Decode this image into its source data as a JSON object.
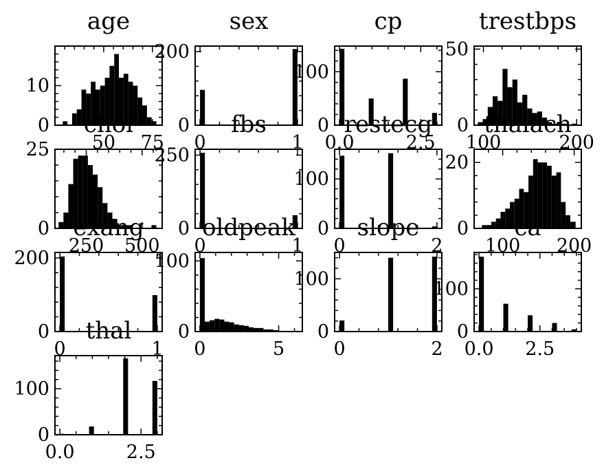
{
  "chart_data": [
    {
      "type": "bar",
      "title": "age",
      "xlim": [
        25,
        80
      ],
      "ylim": [
        0,
        20
      ],
      "x_ticks": [
        "50",
        "75"
      ],
      "x_tick_values": [
        50,
        75
      ],
      "y_ticks": [
        "0",
        "10"
      ],
      "y_tick_values": [
        0,
        10
      ],
      "bin_edges": [
        29,
        31.4,
        33.8,
        36.2,
        38.6,
        41,
        43.4,
        45.8,
        48.2,
        50.6,
        53,
        55.4,
        57.8,
        60.2,
        62.6,
        65,
        67.4,
        69.8,
        72.2,
        74.6,
        77
      ],
      "values": [
        1,
        0,
        3,
        4,
        9,
        8,
        11,
        9,
        10,
        12,
        15,
        18,
        12,
        13,
        11,
        10,
        7,
        5,
        2,
        1
      ]
    },
    {
      "type": "bar",
      "title": "sex",
      "xlim": [
        -0.05,
        1.05
      ],
      "ylim": [
        0,
        215
      ],
      "x_ticks": [
        "0",
        "1"
      ],
      "x_tick_values": [
        0,
        1
      ],
      "y_ticks": [
        "0",
        "200"
      ],
      "y_tick_values": [
        0,
        200
      ],
      "bin_edges": [
        0,
        0.05,
        0.1,
        0.15,
        0.2,
        0.25,
        0.3,
        0.35,
        0.4,
        0.45,
        0.5,
        0.55,
        0.6,
        0.65,
        0.7,
        0.75,
        0.8,
        0.85,
        0.9,
        0.95,
        1
      ],
      "values": [
        96,
        0,
        0,
        0,
        0,
        0,
        0,
        0,
        0,
        0,
        0,
        0,
        0,
        0,
        0,
        0,
        0,
        0,
        0,
        207
      ]
    },
    {
      "type": "bar",
      "title": "cp",
      "xlim": [
        -0.15,
        3.15
      ],
      "ylim": [
        0,
        148
      ],
      "x_ticks": [
        "0.0",
        "2.5"
      ],
      "x_tick_values": [
        0,
        2.5
      ],
      "y_ticks": [
        "0",
        "100"
      ],
      "y_tick_values": [
        0,
        100
      ],
      "bin_edges": [
        0,
        0.15,
        0.3,
        0.45,
        0.6,
        0.75,
        0.9,
        1.05,
        1.2,
        1.35,
        1.5,
        1.65,
        1.8,
        1.95,
        2.1,
        2.25,
        2.4,
        2.55,
        2.7,
        2.85,
        3
      ],
      "values": [
        143,
        0,
        0,
        0,
        0,
        0,
        50,
        0,
        0,
        0,
        0,
        0,
        0,
        87,
        0,
        0,
        0,
        0,
        0,
        23
      ]
    },
    {
      "type": "bar",
      "title": "trestbps",
      "xlim": [
        90,
        205
      ],
      "ylim": [
        0,
        52
      ],
      "x_ticks": [
        "100",
        "200"
      ],
      "x_tick_values": [
        100,
        200
      ],
      "y_ticks": [
        "0",
        "50"
      ],
      "y_tick_values": [
        0,
        50
      ],
      "bin_edges": [
        94,
        99.3,
        104.6,
        109.9,
        115.2,
        120.5,
        125.8,
        131.1,
        136.4,
        141.7,
        147,
        152.3,
        157.6,
        162.9,
        168.2,
        173.5,
        178.8,
        184.1,
        189.4,
        194.7,
        200
      ],
      "values": [
        2,
        4,
        12,
        19,
        16,
        37,
        25,
        30,
        15,
        20,
        11,
        8,
        9,
        5,
        2,
        1,
        2,
        1,
        0,
        1
      ]
    },
    {
      "type": "bar",
      "title": "chol",
      "xlim": [
        110,
        590
      ],
      "ylim": [
        0,
        25
      ],
      "x_ticks": [
        "250",
        "500"
      ],
      "x_tick_values": [
        250,
        500
      ],
      "y_ticks": [
        "0",
        "25"
      ],
      "y_tick_values": [
        0,
        25
      ],
      "bin_edges": [
        126,
        147.9,
        169.8,
        191.7,
        213.6,
        235.5,
        257.4,
        279.3,
        301.2,
        323.1,
        345,
        366.9,
        388.8,
        410.7,
        432.6,
        454.5,
        476.4,
        498.3,
        520.2,
        542.1,
        564
      ],
      "values": [
        2,
        5,
        14,
        22,
        23,
        23,
        20,
        17,
        13,
        8,
        5,
        3,
        1,
        1,
        1,
        0,
        0,
        0,
        0,
        1
      ]
    },
    {
      "type": "bar",
      "title": "fbs",
      "xlim": [
        -0.05,
        1.05
      ],
      "ylim": [
        0,
        270
      ],
      "x_ticks": [
        "0",
        "1"
      ],
      "x_tick_values": [
        0,
        1
      ],
      "y_ticks": [
        "0",
        "250"
      ],
      "y_tick_values": [
        0,
        250
      ],
      "bin_edges": [
        0,
        0.05,
        0.1,
        0.15,
        0.2,
        0.25,
        0.3,
        0.35,
        0.4,
        0.45,
        0.5,
        0.55,
        0.6,
        0.65,
        0.7,
        0.75,
        0.8,
        0.85,
        0.9,
        0.95,
        1
      ],
      "values": [
        258,
        0,
        0,
        0,
        0,
        0,
        0,
        0,
        0,
        0,
        0,
        0,
        0,
        0,
        0,
        0,
        0,
        0,
        0,
        45
      ]
    },
    {
      "type": "bar",
      "title": "restecg",
      "xlim": [
        -0.1,
        2.1
      ],
      "ylim": [
        0,
        160
      ],
      "x_ticks": [
        "0",
        "2"
      ],
      "x_tick_values": [
        0,
        2
      ],
      "y_ticks": [
        "0",
        "100"
      ],
      "y_tick_values": [
        0,
        100
      ],
      "bin_edges": [
        0,
        0.1,
        0.2,
        0.3,
        0.4,
        0.5,
        0.6,
        0.7,
        0.8,
        0.9,
        1,
        1.1,
        1.2,
        1.3,
        1.4,
        1.5,
        1.6,
        1.7,
        1.8,
        1.9,
        2
      ],
      "values": [
        147,
        0,
        0,
        0,
        0,
        0,
        0,
        0,
        0,
        0,
        152,
        0,
        0,
        0,
        0,
        0,
        0,
        0,
        0,
        4
      ]
    },
    {
      "type": "bar",
      "title": "thalach",
      "xlim": [
        60,
        210
      ],
      "ylim": [
        0,
        24
      ],
      "x_ticks": [
        "100",
        "200"
      ],
      "x_tick_values": [
        100,
        200
      ],
      "y_ticks": [
        "0",
        "20"
      ],
      "y_tick_values": [
        0,
        20
      ],
      "bin_edges": [
        71,
        77.5,
        84,
        90.5,
        97,
        103.5,
        110,
        116.5,
        123,
        129.5,
        136,
        142.5,
        149,
        155.5,
        162,
        168.5,
        175,
        181.5,
        188,
        194.5,
        202
      ],
      "values": [
        1,
        1,
        2,
        3,
        5,
        6,
        8,
        9,
        12,
        11,
        16,
        21,
        20,
        20,
        19,
        16,
        17,
        8,
        4,
        2
      ]
    },
    {
      "type": "bar",
      "title": "exang",
      "xlim": [
        -0.05,
        1.05
      ],
      "ylim": [
        0,
        215
      ],
      "x_ticks": [
        "0",
        "1"
      ],
      "x_tick_values": [
        0,
        1
      ],
      "y_ticks": [
        "0",
        "200"
      ],
      "y_tick_values": [
        0,
        200
      ],
      "bin_edges": [
        0,
        0.05,
        0.1,
        0.15,
        0.2,
        0.25,
        0.3,
        0.35,
        0.4,
        0.45,
        0.5,
        0.55,
        0.6,
        0.65,
        0.7,
        0.75,
        0.8,
        0.85,
        0.9,
        0.95,
        1
      ],
      "values": [
        204,
        0,
        0,
        0,
        0,
        0,
        0,
        0,
        0,
        0,
        0,
        0,
        0,
        0,
        0,
        0,
        0,
        0,
        0,
        99
      ]
    },
    {
      "type": "bar",
      "title": "oldpeak",
      "xlim": [
        -0.3,
        6.5
      ],
      "ylim": [
        0,
        112
      ],
      "x_ticks": [
        "0",
        "5"
      ],
      "x_tick_values": [
        0,
        5
      ],
      "y_ticks": [
        "0",
        "100"
      ],
      "y_tick_values": [
        0,
        100
      ],
      "bin_edges": [
        0,
        0.31,
        0.62,
        0.93,
        1.24,
        1.55,
        1.86,
        2.17,
        2.48,
        2.79,
        3.1,
        3.41,
        3.72,
        4.03,
        4.34,
        4.65,
        4.96,
        5.27,
        5.58,
        5.89,
        6.2
      ],
      "values": [
        104,
        14,
        16,
        18,
        17,
        14,
        13,
        10,
        9,
        8,
        6,
        5,
        5,
        3,
        3,
        2,
        1,
        1,
        0,
        1
      ]
    },
    {
      "type": "bar",
      "title": "slope",
      "xlim": [
        -0.1,
        2.1
      ],
      "ylim": [
        0,
        150
      ],
      "x_ticks": [
        "0",
        "2"
      ],
      "x_tick_values": [
        0,
        2
      ],
      "y_ticks": [
        "0",
        "100"
      ],
      "y_tick_values": [
        0,
        100
      ],
      "bin_edges": [
        0,
        0.1,
        0.2,
        0.3,
        0.4,
        0.5,
        0.6,
        0.7,
        0.8,
        0.9,
        1,
        1.1,
        1.2,
        1.3,
        1.4,
        1.5,
        1.6,
        1.7,
        1.8,
        1.9,
        2
      ],
      "values": [
        21,
        0,
        0,
        0,
        0,
        0,
        0,
        0,
        0,
        0,
        140,
        0,
        0,
        0,
        0,
        0,
        0,
        0,
        0,
        142
      ]
    },
    {
      "type": "bar",
      "title": "ca",
      "xlim": [
        -0.2,
        4.2
      ],
      "ylim": [
        0,
        185
      ],
      "x_ticks": [
        "0.0",
        "2.5"
      ],
      "x_tick_values": [
        0,
        2.5
      ],
      "y_ticks": [
        "0",
        "100"
      ],
      "y_tick_values": [
        0,
        100
      ],
      "bin_edges": [
        0,
        0.2,
        0.4,
        0.6,
        0.8,
        1,
        1.2,
        1.4,
        1.6,
        1.8,
        2,
        2.2,
        2.4,
        2.6,
        2.8,
        3,
        3.2,
        3.4,
        3.6,
        3.8,
        4
      ],
      "values": [
        175,
        0,
        0,
        0,
        0,
        65,
        0,
        0,
        0,
        0,
        38,
        0,
        0,
        0,
        0,
        20,
        0,
        0,
        0,
        5
      ]
    },
    {
      "type": "bar",
      "title": "thal",
      "xlim": [
        -0.15,
        3.15
      ],
      "ylim": [
        0,
        172
      ],
      "x_ticks": [
        "0.0",
        "2.5"
      ],
      "x_tick_values": [
        0,
        2.5
      ],
      "y_ticks": [
        "0",
        "100"
      ],
      "y_tick_values": [
        0,
        100
      ],
      "bin_edges": [
        0,
        0.15,
        0.3,
        0.45,
        0.6,
        0.75,
        0.9,
        1.05,
        1.2,
        1.35,
        1.5,
        1.65,
        1.8,
        1.95,
        2.1,
        2.25,
        2.4,
        2.55,
        2.7,
        2.85,
        3
      ],
      "values": [
        2,
        0,
        0,
        0,
        0,
        0,
        18,
        0,
        0,
        0,
        0,
        0,
        0,
        166,
        0,
        0,
        0,
        0,
        0,
        117
      ]
    }
  ]
}
